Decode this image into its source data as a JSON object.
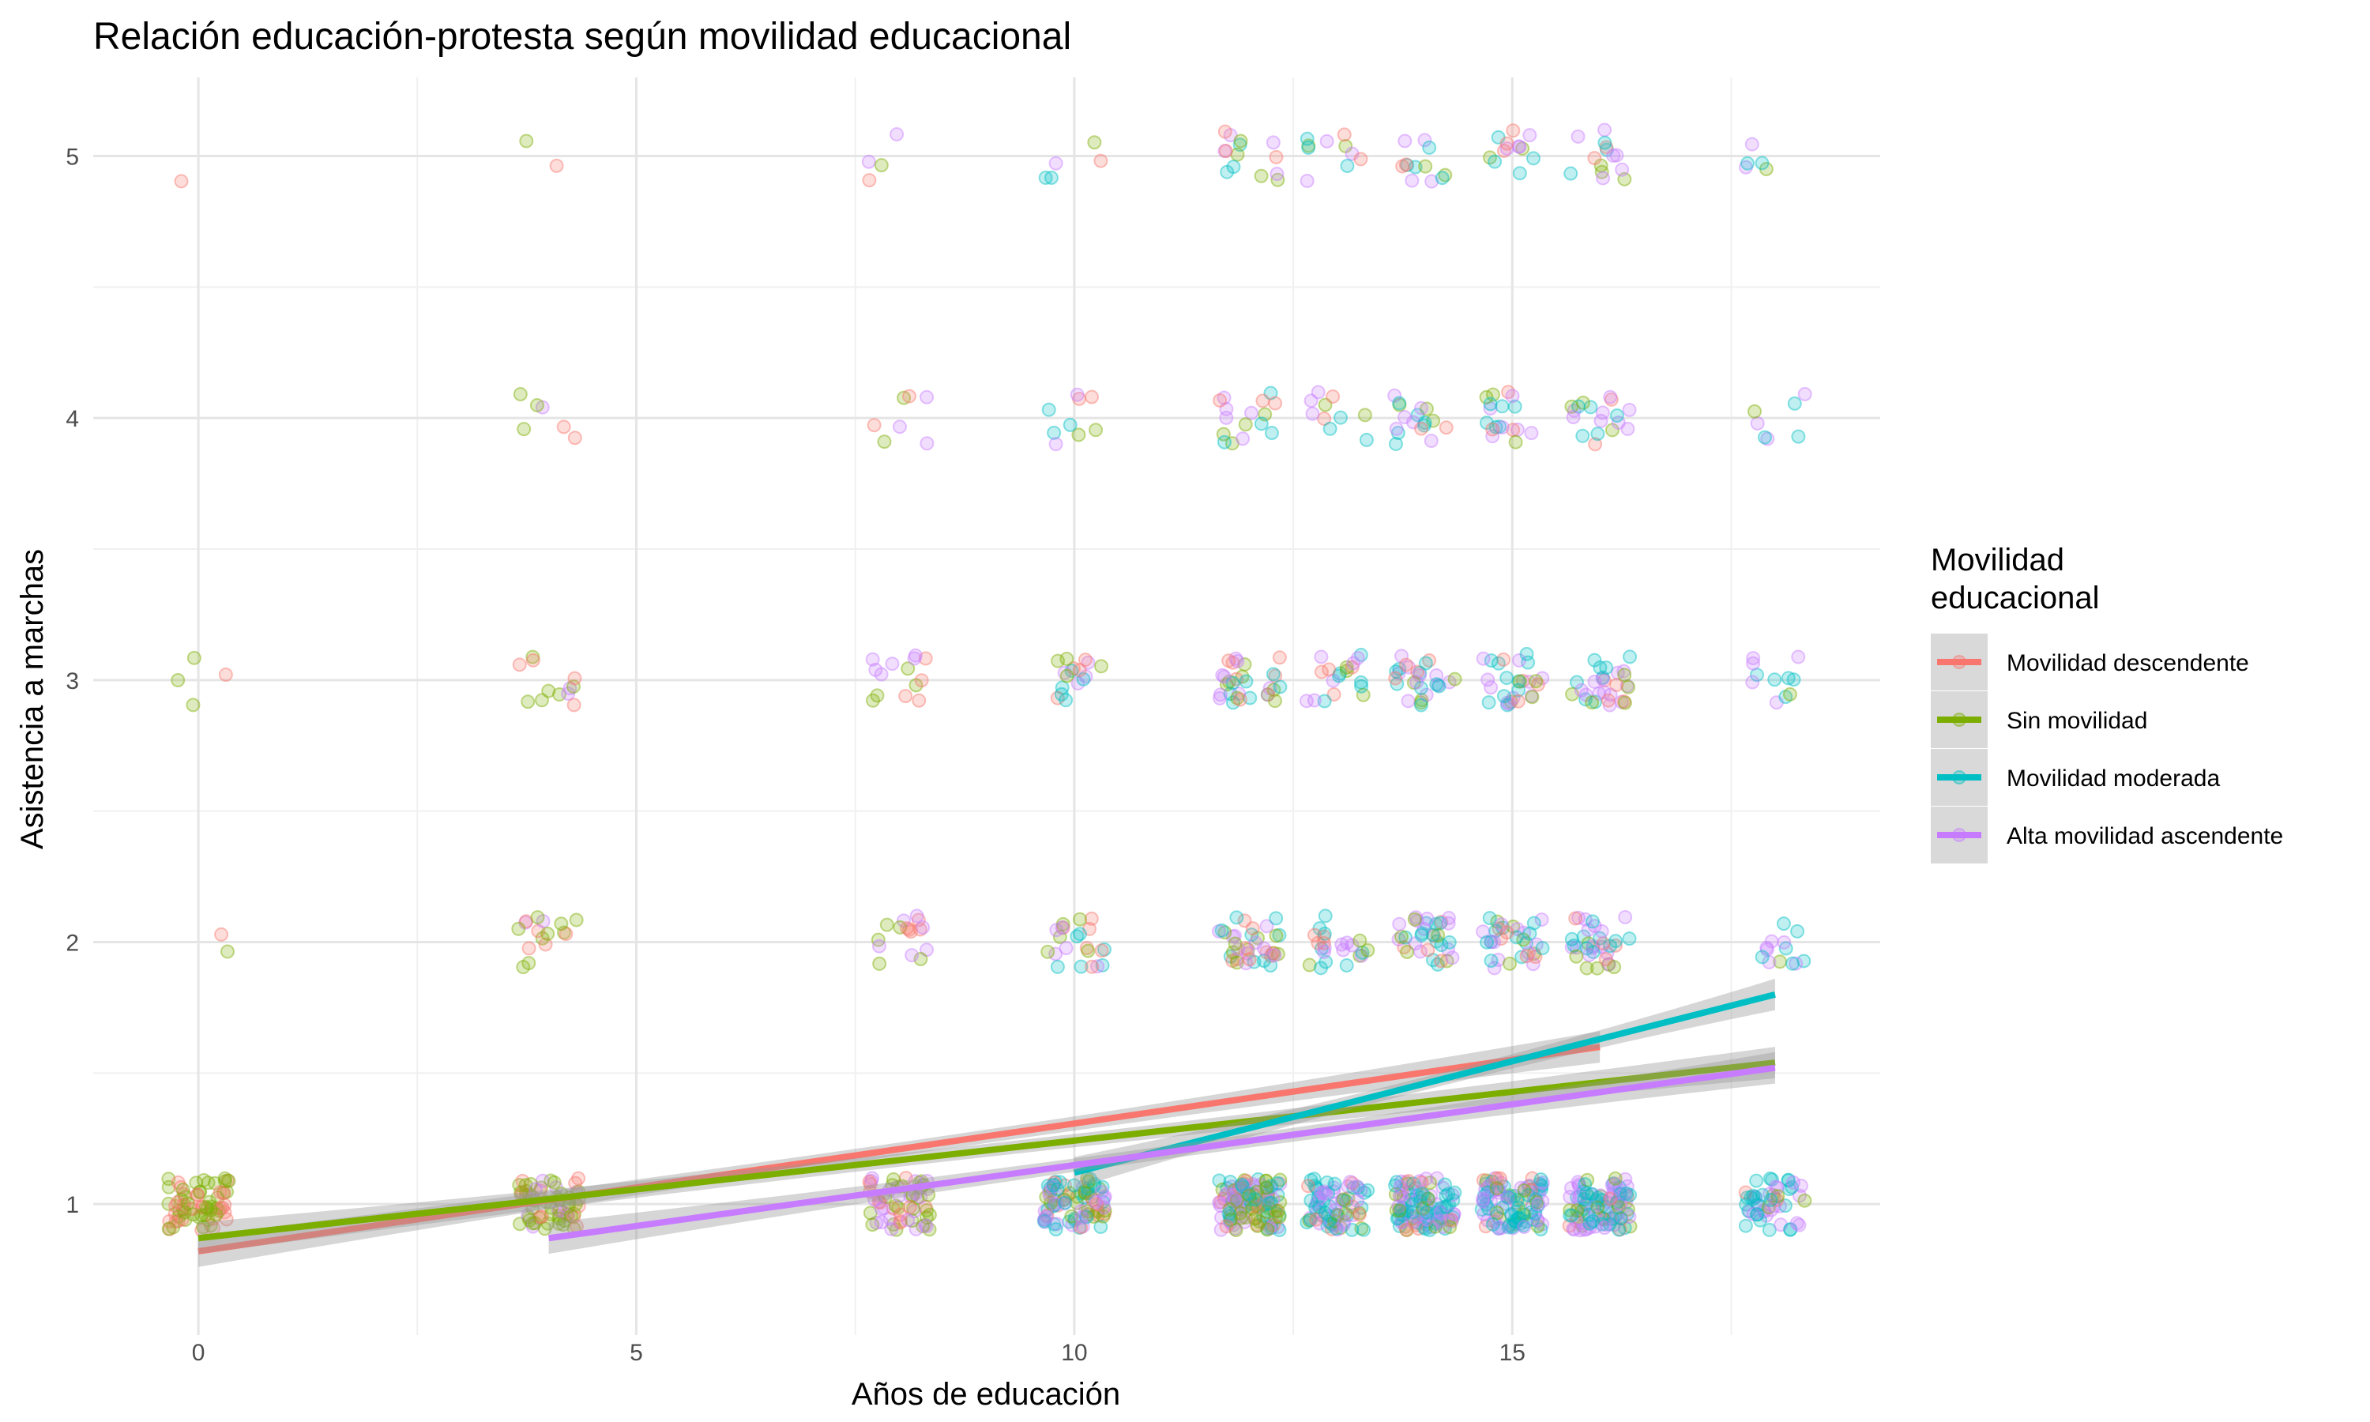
{
  "chart_data": {
    "type": "scatter",
    "title": "Relación educación-protesta según movilidad educacional",
    "xlabel": "Años de educación",
    "ylabel": "Asistencia a marchas",
    "xlim": [
      -1.2,
      19.2
    ],
    "ylim": [
      0.5,
      5.3
    ],
    "x_ticks": [
      0,
      5,
      10,
      15
    ],
    "y_ticks": [
      1,
      2,
      3,
      4,
      5
    ],
    "x_minor": [
      2.5,
      7.5,
      12.5,
      17.5
    ],
    "y_minor": [
      1.5,
      2.5,
      3.5,
      4.5
    ],
    "grid": true,
    "legend": {
      "title_lines": [
        "Movilidad",
        "educacional"
      ],
      "placement": "right"
    },
    "education_levels": [
      0,
      4,
      8,
      10,
      12,
      13,
      14,
      15,
      16,
      18
    ],
    "series": [
      {
        "name": "Movilidad descendente",
        "color": "#F8766D",
        "trend": {
          "x": [
            0,
            16
          ],
          "y": [
            0.82,
            1.6
          ]
        },
        "points_per_cell": [
          [
            30,
            1,
            1,
            0,
            1
          ],
          [
            14,
            5,
            4,
            2,
            1
          ],
          [
            12,
            5,
            4,
            2,
            1
          ],
          [
            12,
            6,
            4,
            2,
            1
          ],
          [
            16,
            9,
            7,
            3,
            3
          ],
          [
            6,
            4,
            4,
            2,
            2
          ],
          [
            8,
            5,
            4,
            2,
            2
          ],
          [
            8,
            5,
            4,
            3,
            3
          ],
          [
            7,
            4,
            4,
            2,
            2
          ],
          [
            2,
            0,
            0,
            0,
            0
          ]
        ]
      },
      {
        "name": "Sin movilidad",
        "color": "#7CAE00",
        "trend": {
          "x": [
            0,
            18
          ],
          "y": [
            0.87,
            1.54
          ]
        },
        "points_per_cell": [
          [
            40,
            1,
            3,
            0,
            0
          ],
          [
            40,
            9,
            6,
            3,
            1
          ],
          [
            25,
            5,
            4,
            2,
            1
          ],
          [
            22,
            5,
            4,
            2,
            1
          ],
          [
            35,
            9,
            7,
            4,
            4
          ],
          [
            10,
            4,
            3,
            2,
            2
          ],
          [
            14,
            5,
            4,
            3,
            2
          ],
          [
            12,
            5,
            4,
            3,
            2
          ],
          [
            15,
            6,
            5,
            3,
            3
          ],
          [
            4,
            1,
            1,
            1,
            1
          ]
        ]
      },
      {
        "name": "Movilidad moderada",
        "color": "#00BFC4",
        "trend": {
          "x": [
            10,
            18
          ],
          "y": [
            1.12,
            1.8
          ]
        },
        "points_per_cell": [
          [
            0,
            0,
            0,
            0,
            0
          ],
          [
            0,
            0,
            0,
            0,
            0
          ],
          [
            0,
            0,
            0,
            0,
            0
          ],
          [
            30,
            6,
            5,
            3,
            2
          ],
          [
            35,
            9,
            8,
            4,
            3
          ],
          [
            35,
            8,
            6,
            3,
            3
          ],
          [
            45,
            12,
            9,
            6,
            4
          ],
          [
            45,
            12,
            10,
            6,
            4
          ],
          [
            35,
            10,
            8,
            5,
            3
          ],
          [
            25,
            6,
            5,
            3,
            2
          ]
        ]
      },
      {
        "name": "Alta movilidad ascendente",
        "color": "#C77CFF",
        "trend": {
          "x": [
            4,
            18
          ],
          "y": [
            0.87,
            1.52
          ]
        },
        "points_per_cell": [
          [
            0,
            0,
            0,
            0,
            0
          ],
          [
            10,
            2,
            2,
            1,
            0
          ],
          [
            25,
            6,
            6,
            3,
            2
          ],
          [
            25,
            5,
            4,
            2,
            1
          ],
          [
            35,
            10,
            8,
            5,
            4
          ],
          [
            25,
            7,
            6,
            3,
            3
          ],
          [
            40,
            12,
            10,
            6,
            4
          ],
          [
            40,
            12,
            10,
            6,
            4
          ],
          [
            45,
            14,
            12,
            8,
            6
          ],
          [
            20,
            6,
            5,
            3,
            2
          ]
        ]
      }
    ]
  }
}
